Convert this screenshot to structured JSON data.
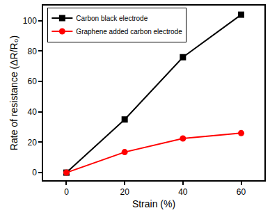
{
  "chart_data": {
    "type": "line",
    "x_label": "Strain (%)",
    "y_label": "Rate of resistance (ΔR/R₀)",
    "x": [
      0,
      20,
      40,
      60
    ],
    "series": [
      {
        "name": "Carbon black electrode",
        "color": "#000000",
        "marker": "square",
        "values": [
          0,
          35,
          76,
          104
        ]
      },
      {
        "name": "Graphene added carbon electrode",
        "color": "#ff0000",
        "marker": "circle",
        "values": [
          0,
          13.5,
          22.5,
          26
        ]
      }
    ],
    "xlim": [
      -8,
      68
    ],
    "xticks": [
      0,
      20,
      40,
      60
    ],
    "ylim": [
      -5,
      110
    ],
    "yticks": [
      0,
      20,
      40,
      60,
      80,
      100
    ],
    "grid": false,
    "legend": "upper left"
  }
}
